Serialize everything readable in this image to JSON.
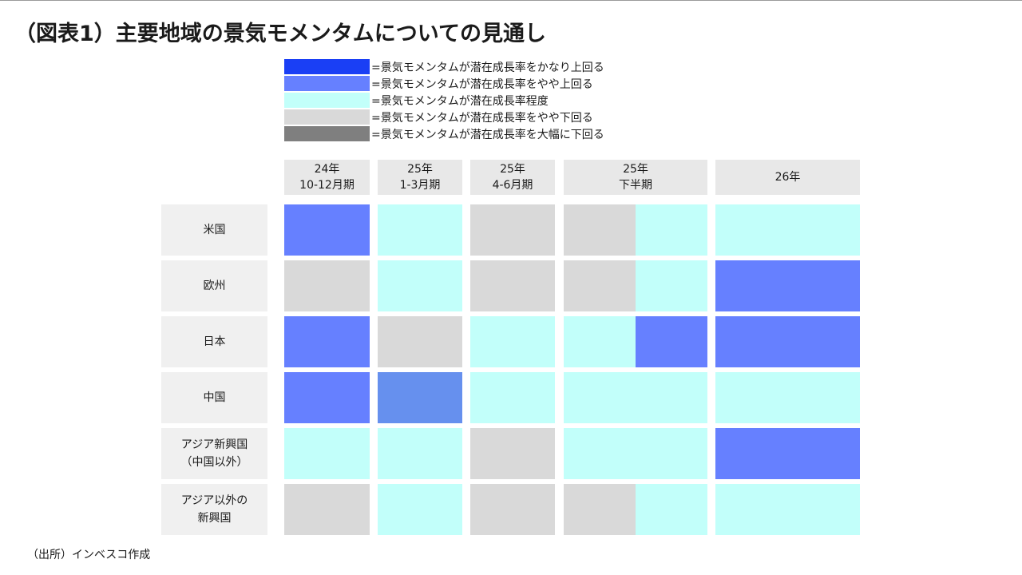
{
  "title": "（図表1）主要地域の景気モメンタムについての見通し",
  "source": "（出所）インベスコ作成",
  "colors": {
    "much_above": "#1a3ff5",
    "slightly_above": "#6680ff",
    "at": "#c2fffa",
    "slightly_below": "#d9d9d9",
    "far_below": "#7f7f7f",
    "china_q1": "#6690ee"
  },
  "legend": [
    {
      "key": "much_above",
      "label": "=景気モメンタムが潜在成長率をかなり上回る"
    },
    {
      "key": "slightly_above",
      "label": "=景気モメンタムが潜在成長率をやや上回る"
    },
    {
      "key": "at",
      "label": "=景気モメンタムが潜在成長率程度"
    },
    {
      "key": "slightly_below",
      "label": "=景気モメンタムが潜在成長率をやや下回る"
    },
    {
      "key": "far_below",
      "label": "=景気モメンタムが潜在成長率を大幅に下回る"
    }
  ],
  "chart_data": {
    "type": "heatmap",
    "columns": [
      "24年\n10-12月期",
      "25年\n1-3月期",
      "25年\n4-6月期",
      "25年\n下半期",
      "26年"
    ],
    "rows": [
      {
        "label": "米国",
        "cells": [
          [
            "slightly_above"
          ],
          [
            "at"
          ],
          [
            "slightly_below"
          ],
          [
            "slightly_below",
            "at"
          ],
          [
            "at"
          ]
        ]
      },
      {
        "label": "欧州",
        "cells": [
          [
            "slightly_below"
          ],
          [
            "at"
          ],
          [
            "slightly_below"
          ],
          [
            "slightly_below",
            "at"
          ],
          [
            "slightly_above"
          ]
        ]
      },
      {
        "label": "日本",
        "cells": [
          [
            "slightly_above"
          ],
          [
            "slightly_below"
          ],
          [
            "at"
          ],
          [
            "at",
            "slightly_above"
          ],
          [
            "slightly_above"
          ]
        ]
      },
      {
        "label": "中国",
        "cells": [
          [
            "slightly_above"
          ],
          [
            "china_q1"
          ],
          [
            "at"
          ],
          [
            "at"
          ],
          [
            "at"
          ]
        ]
      },
      {
        "label": "アジア新興国\n（中国以外）",
        "cells": [
          [
            "at"
          ],
          [
            "at"
          ],
          [
            "slightly_below"
          ],
          [
            "at"
          ],
          [
            "slightly_above"
          ]
        ]
      },
      {
        "label": "アジア以外の\n新興国",
        "cells": [
          [
            "slightly_below"
          ],
          [
            "at"
          ],
          [
            "slightly_below"
          ],
          [
            "slightly_below",
            "at"
          ],
          [
            "at"
          ]
        ]
      }
    ]
  }
}
